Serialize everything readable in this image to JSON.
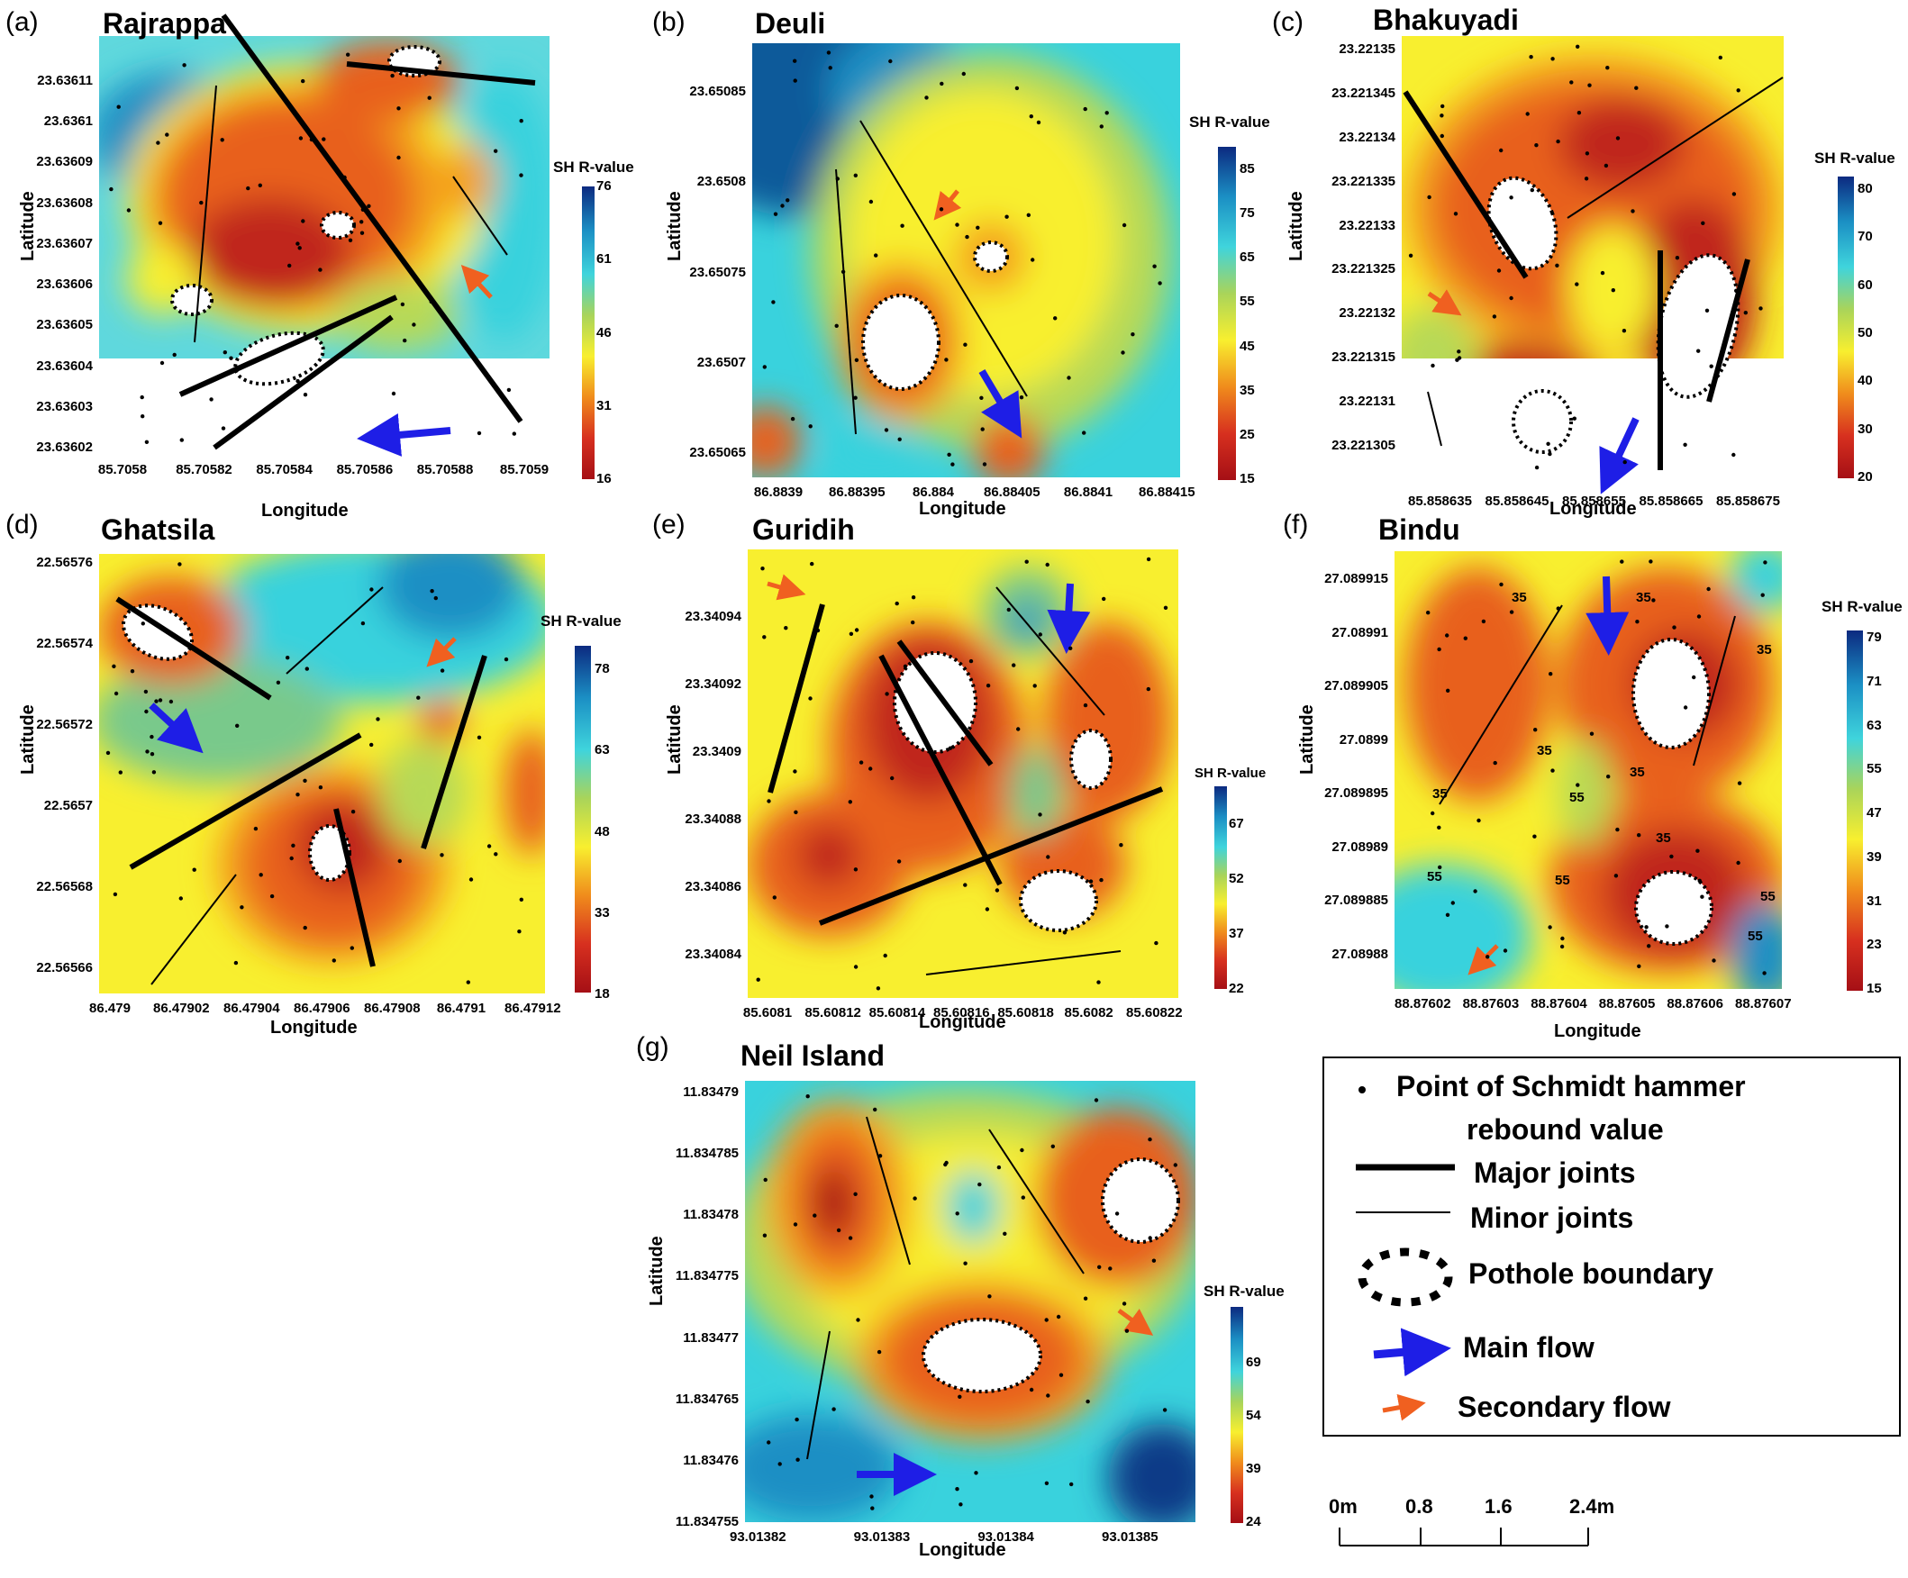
{
  "panels": [
    {
      "letter": "(a)",
      "site": "Rajrappa",
      "colorbar_title": "SH R-value",
      "x_ticks": [
        "85.7058",
        "85.70582",
        "85.70584",
        "85.70586",
        "85.70588",
        "85.7059"
      ],
      "y_ticks": [
        "23.63611",
        "23.6361",
        "23.63609",
        "23.63608",
        "23.63607",
        "23.63606",
        "23.63605",
        "23.63604",
        "23.63603",
        "23.63602"
      ],
      "colorbar_ticks": [
        "76",
        "61",
        "46",
        "31",
        "16"
      ],
      "xlabel": "Longitude",
      "ylabel": "Latitude"
    },
    {
      "letter": "(b)",
      "site": "Deuli",
      "colorbar_title": "SH R-value",
      "x_ticks": [
        "86.8839",
        "86.88395",
        "86.884",
        "86.88405",
        "86.8841",
        "86.88415"
      ],
      "y_ticks": [
        "23.65085",
        "23.6508",
        "23.65075",
        "23.6507",
        "23.65065"
      ],
      "colorbar_ticks": [
        "85",
        "75",
        "65",
        "55",
        "45",
        "35",
        "25",
        "15"
      ],
      "xlabel": "Longitude",
      "ylabel": "Latitude"
    },
    {
      "letter": "(c)",
      "site": "Bhakuyadi",
      "colorbar_title": "SH R-value",
      "x_ticks": [
        "85.858635",
        "85.858645",
        "85.858655",
        "85.858665",
        "85.858675"
      ],
      "y_ticks": [
        "23.22135",
        "23.221345",
        "23.22134",
        "23.221335",
        "23.22133",
        "23.221325",
        "23.22132",
        "23.221315",
        "23.22131",
        "23.221305"
      ],
      "colorbar_ticks": [
        "80",
        "70",
        "60",
        "50",
        "40",
        "30",
        "20"
      ],
      "xlabel": "Longitude",
      "ylabel": "Latitude"
    },
    {
      "letter": "(d)",
      "site": "Ghatsila",
      "colorbar_title": "SH R-value",
      "x_ticks": [
        "86.479",
        "86.47902",
        "86.47904",
        "86.47906",
        "86.47908",
        "86.4791",
        "86.47912"
      ],
      "y_ticks": [
        "22.56576",
        "22.56574",
        "22.56572",
        "22.5657",
        "22.56568",
        "22.56566"
      ],
      "colorbar_ticks": [
        "78",
        "63",
        "48",
        "33",
        "18"
      ],
      "xlabel": "Longitude",
      "ylabel": "Latitude"
    },
    {
      "letter": "(e)",
      "site": "Guridih",
      "colorbar_title": "SH R-value",
      "x_ticks": [
        "85.6081",
        "85.60812",
        "85.60814",
        "85.60816",
        "85.60818",
        "85.6082",
        "85.60822"
      ],
      "y_ticks": [
        "23.34094",
        "23.34092",
        "23.3409",
        "23.34088",
        "23.34086",
        "23.34084"
      ],
      "colorbar_ticks": [
        "67",
        "52",
        "37",
        "22"
      ],
      "xlabel": "Longitude",
      "ylabel": "Latitude"
    },
    {
      "letter": "(f)",
      "site": "Bindu",
      "colorbar_title": "SH R-value",
      "x_ticks": [
        "88.87602",
        "88.87603",
        "88.87604",
        "88.87605",
        "88.87606",
        "88.87607"
      ],
      "y_ticks": [
        "27.089915",
        "27.08991",
        "27.089905",
        "27.0899",
        "27.089895",
        "27.08989",
        "27.089885",
        "27.08988"
      ],
      "colorbar_ticks": [
        "79",
        "71",
        "63",
        "55",
        "47",
        "39",
        "31",
        "23",
        "15"
      ],
      "contour_labels": [
        "35",
        "35",
        "35",
        "35",
        "35",
        "35",
        "55",
        "55",
        "55",
        "55",
        "35",
        "55"
      ],
      "xlabel": "Longitude",
      "ylabel": "Latitude"
    },
    {
      "letter": "(g)",
      "site": "Neil Island",
      "colorbar_title": "SH R-value",
      "x_ticks": [
        "93.01382",
        "93.01383",
        "93.01384",
        "93.01385"
      ],
      "y_ticks": [
        "11.83479",
        "11.834785",
        "11.83478",
        "11.834775",
        "11.83477",
        "11.834765",
        "11.83476",
        "11.834755"
      ],
      "colorbar_ticks": [
        "69",
        "54",
        "39",
        "24"
      ],
      "xlabel": "Longitude",
      "ylabel": "Latitude"
    }
  ],
  "legend": {
    "items": [
      {
        "label_line1": "Point of Schmidt hammer",
        "label_line2": "rebound value"
      },
      {
        "label_line1": "Major joints"
      },
      {
        "label_line1": "Minor joints"
      },
      {
        "label_line1": "Pothole boundary"
      },
      {
        "label_line1": "Main flow"
      },
      {
        "label_line1": "Secondary flow"
      }
    ]
  },
  "scale_bar": {
    "ticks": [
      "0m",
      "0.8",
      "1.6",
      "2.4m"
    ]
  },
  "colors": {
    "low": "#a50f15",
    "orange": "#e8601c",
    "amber": "#f4a11d",
    "yellow": "#f8ef2f",
    "yellowgreen": "#b7d957",
    "green": "#79c98b",
    "cyan": "#39d2dd",
    "blue": "#1b8fc4",
    "navy": "#0c3a87",
    "main_flow": "#1e1ee6",
    "secondary_flow": "#f06020"
  }
}
